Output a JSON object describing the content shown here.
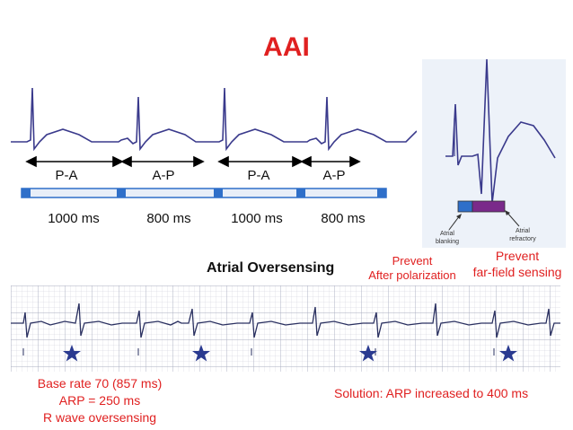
{
  "title": "AAI",
  "timing": {
    "intervals": [
      "P-A",
      "A-P",
      "P-A",
      "A-P"
    ],
    "durations": [
      "1000 ms",
      "800 ms",
      "1000 ms",
      "800 ms"
    ]
  },
  "inset": {
    "blanking_label": "Atrial\nblanking",
    "refractory_label": "Atrial\nrefractory",
    "blanking_color": "#2f6fc9",
    "refractory_color": "#7a2a8a"
  },
  "center_label": "Atrial Oversensing",
  "prevent_left": {
    "line1": "Prevent",
    "line2": "After polarization"
  },
  "prevent_right": {
    "line1": "Prevent",
    "line2": "far-field sensing"
  },
  "base_info": {
    "line1": "Base rate 70 (857 ms)",
    "line2": "ARP = 250 ms",
    "line3": "R wave oversensing"
  },
  "solution": "Solution: ARP increased to 400 ms",
  "colors": {
    "title": "#e02020",
    "trace": "#3a3a8c",
    "annotation": "#e02020",
    "star": "#2a3a90"
  }
}
